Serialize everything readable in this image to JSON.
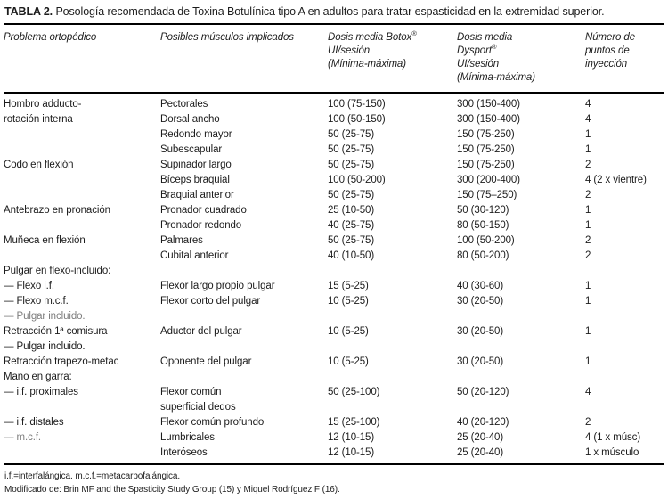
{
  "title": {
    "label": "TABLA 2.",
    "text": "Posología recomendada de Toxina Botulínica tipo A en adultos para tratar espasticidad en la extremidad superior."
  },
  "colors": {
    "text": "#1c1c1c",
    "muted_text": "#7d7d7d",
    "rule": "#000000",
    "background": "#ffffff"
  },
  "table": {
    "header": {
      "problema": "Problema ortopédico",
      "musculos": "Posibles músculos implicados",
      "botox": {
        "line1": "Dosis media Botox",
        "sup": "®",
        "line2": "UI/sesión",
        "line3": "(Mínima-máxima)"
      },
      "dysport": {
        "line1": "Dosis media",
        "line2": "Dysport",
        "sup": "®",
        "line3": "UI/sesión",
        "line4": "(Mínima-máxima)"
      },
      "puntos": {
        "line1": "Número de",
        "line2": "puntos de",
        "line3": "inyección"
      }
    },
    "rows": [
      {
        "problema": "Hombro adducto-",
        "musculo": "Pectorales",
        "botox": "100 (75-150)",
        "dysport": "300 (150-400)",
        "puntos": "4"
      },
      {
        "problema": "rotación interna",
        "musculo": "Dorsal ancho",
        "botox": "100 (50-150)",
        "dysport": "300 (150-400)",
        "puntos": "4"
      },
      {
        "problema": "",
        "musculo": "Redondo mayor",
        "botox": "50 (25-75)",
        "dysport": "150 (75-250)",
        "puntos": "1"
      },
      {
        "problema": "",
        "musculo": "Subescapular",
        "botox": "50 (25-75)",
        "dysport": "150 (75-250)",
        "puntos": "1"
      },
      {
        "problema": "Codo en flexión",
        "musculo": "Supinador largo",
        "botox": "50 (25-75)",
        "dysport": "150 (75-250)",
        "puntos": "2"
      },
      {
        "problema": "",
        "musculo": "Bíceps braquial",
        "botox": "100 (50-200)",
        "dysport": "300 (200-400)",
        "puntos": "4 (2 x vientre)"
      },
      {
        "problema": "",
        "musculo": "Braquial anterior",
        "botox": "50 (25-75)",
        "dysport": "150 (75–250)",
        "puntos": "2"
      },
      {
        "problema": "Antebrazo en pronación",
        "musculo": "Pronador cuadrado",
        "botox": "25 (10-50)",
        "dysport": "50 (30-120)",
        "puntos": "1"
      },
      {
        "problema": "",
        "musculo": "Pronador redondo",
        "botox": "40 (25-75)",
        "dysport": "80 (50-150)",
        "puntos": "1"
      },
      {
        "problema": "Muñeca en flexión",
        "musculo": "Palmares",
        "botox": "50 (25-75)",
        "dysport": "100 (50-200)",
        "puntos": "2"
      },
      {
        "problema": "",
        "musculo": "Cubital anterior",
        "botox": "40 (10-50)",
        "dysport": "80 (50-200)",
        "puntos": "2"
      },
      {
        "problema": "Pulgar en flexo-incluido:",
        "musculo": "",
        "botox": "",
        "dysport": "",
        "puntos": ""
      },
      {
        "problema": "— Flexo i.f.",
        "musculo": "Flexor largo propio pulgar",
        "botox": "15 (5-25)",
        "dysport": "40 (30-60)",
        "puntos": "1"
      },
      {
        "problema": "— Flexo m.c.f.",
        "musculo": "Flexor corto del pulgar",
        "botox": "10 (5-25)",
        "dysport": "30 (20-50)",
        "puntos": "1"
      },
      {
        "problema": "— Pulgar incluido.",
        "musculo": "",
        "botox": "",
        "dysport": "",
        "puntos": "",
        "muted": true
      },
      {
        "problema": "Retracción 1ª comisura",
        "musculo": "Aductor del pulgar",
        "botox": "10 (5-25)",
        "dysport": "30 (20-50)",
        "puntos": "1"
      },
      {
        "problema": "— Pulgar incluido.",
        "musculo": "",
        "botox": "",
        "dysport": "",
        "puntos": ""
      },
      {
        "problema": "Retracción trapezo-metac",
        "musculo": "Oponente del pulgar",
        "botox": "10 (5-25)",
        "dysport": "30 (20-50)",
        "puntos": "1"
      },
      {
        "problema": "Mano en garra:",
        "musculo": "",
        "botox": "",
        "dysport": "",
        "puntos": ""
      },
      {
        "problema": "— i.f. proximales",
        "musculo": "Flexor común",
        "botox": "50 (25-100)",
        "dysport": "50 (20-120)",
        "puntos": "4"
      },
      {
        "problema": "",
        "musculo": "superficial dedos",
        "botox": "",
        "dysport": "",
        "puntos": ""
      },
      {
        "problema": "— i.f. distales",
        "musculo": "Flexor común profundo",
        "botox": "15 (25-100)",
        "dysport": "40 (20-120)",
        "puntos": "2"
      },
      {
        "problema": "— m.c.f.",
        "musculo": "Lumbricales",
        "botox": "12 (10-15)",
        "dysport": "25 (20-40)",
        "puntos": "4 (1 x músc)",
        "muted": true
      },
      {
        "problema": "",
        "musculo": "Interóseos",
        "botox": "12 (10-15)",
        "dysport": "25 (20-40)",
        "puntos": "1 x músculo"
      }
    ]
  },
  "footnotes": [
    "i.f.=interfalángica. m.c.f.=metacarpofalángica.",
    "Modificado de: Brin MF and the Spasticity Study Group (15) y Miquel Rodríguez F (16)."
  ]
}
